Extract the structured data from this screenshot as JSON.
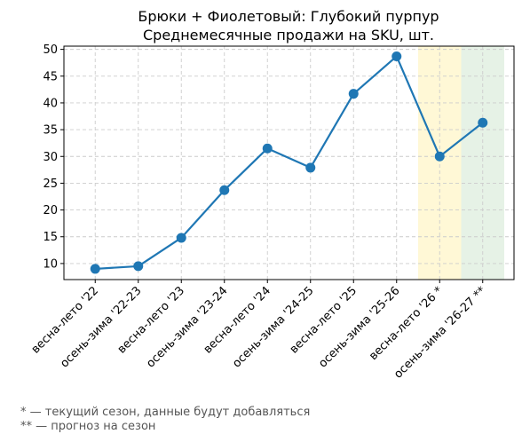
{
  "chart_data": {
    "type": "line",
    "title": "Брюки + Фиолетовый: Глубокий пурпур",
    "subtitle": "Среднемесячные продажи на SKU, шт.",
    "xlabel": "",
    "ylabel": "",
    "categories": [
      "весна-лето '22",
      "осень-зима '22-23",
      "весна-лето '23",
      "осень-зима '23-24",
      "весна-лето '24",
      "осень-зима '24-25",
      "весна-лето '25",
      "осень-зима '25-26",
      "весна-лето '26 *",
      "осень-зима '26-27 **"
    ],
    "series": [
      {
        "values": [
          9.0,
          9.5,
          14.8,
          23.7,
          31.5,
          27.9,
          41.7,
          48.7,
          30.0,
          36.3
        ],
        "color": "#1f77b4"
      }
    ],
    "ylim": [
      7,
      50.6
    ],
    "yticks": [
      10,
      15,
      20,
      25,
      30,
      35,
      40,
      45,
      50
    ],
    "grid": true,
    "highlights": [
      {
        "category": "весна-лето '26 *",
        "color": "#fff8d6",
        "meaning": "current"
      },
      {
        "category": "осень-зима '26-27 **",
        "color": "#e6f2e6",
        "meaning": "forecast"
      }
    ]
  },
  "footnotes": {
    "current": "* — текущий сезон, данные будут добавляться",
    "forecast": "** — прогноз на сезон"
  }
}
